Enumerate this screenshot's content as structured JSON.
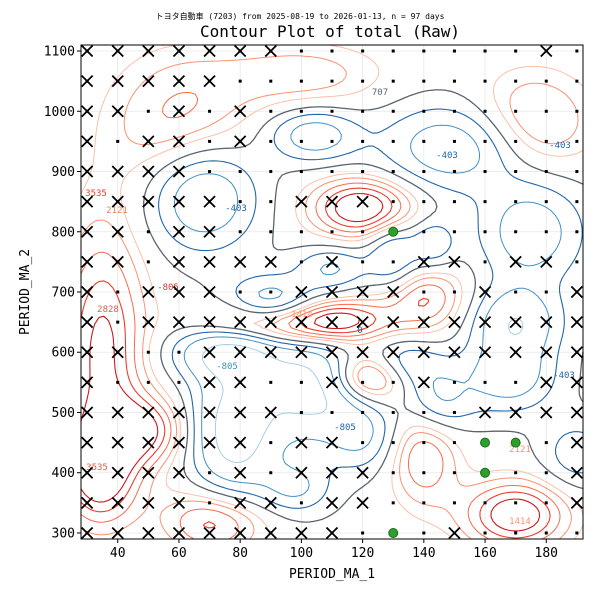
{
  "chart_data": {
    "type": "contour",
    "suptitle": "トヨタ自動車 (7203) from 2025-08-19 to 2026-01-13, n = 97 days",
    "title": "Contour Plot of total (Raw)",
    "xlabel": "PERIOD_MA_1",
    "ylabel": "PERIOD_MA_2",
    "xlim": [
      28,
      192
    ],
    "ylim": [
      290,
      1110
    ],
    "xticks": [
      40,
      60,
      80,
      100,
      120,
      140,
      160,
      180
    ],
    "yticks": [
      300,
      400,
      500,
      600,
      700,
      800,
      900,
      1000,
      1100
    ],
    "grid": true,
    "contour_levels": [
      -805,
      -403,
      0,
      707,
      1414,
      2121,
      2828,
      3535
    ],
    "contour_label_samples": [
      "-805",
      "-403",
      "0",
      "707",
      "1414",
      "2121",
      "2828",
      "3535"
    ],
    "colors": {
      "negative": "#2166ac",
      "zero": "#5a6470",
      "positive": "#d6604d",
      "marker_x": "#000000",
      "marker_dot": "#000000",
      "best": "#2ca02c"
    },
    "best_points": [
      {
        "x": 130,
        "y": 800
      },
      {
        "x": 130,
        "y": 300
      },
      {
        "x": 160,
        "y": 450
      },
      {
        "x": 160,
        "y": 400
      },
      {
        "x": 170,
        "y": 450
      }
    ],
    "x_markers": [
      {
        "x": 30,
        "y": 1100
      },
      {
        "x": 40,
        "y": 1100
      },
      {
        "x": 50,
        "y": 1100
      },
      {
        "x": 60,
        "y": 1100
      },
      {
        "x": 70,
        "y": 1100
      },
      {
        "x": 80,
        "y": 1100
      },
      {
        "x": 90,
        "y": 1100
      },
      {
        "x": 180,
        "y": 1100
      },
      {
        "x": 30,
        "y": 1050
      },
      {
        "x": 40,
        "y": 1050
      },
      {
        "x": 50,
        "y": 1050
      },
      {
        "x": 60,
        "y": 1050
      },
      {
        "x": 70,
        "y": 1050
      },
      {
        "x": 30,
        "y": 1000
      },
      {
        "x": 40,
        "y": 1000
      },
      {
        "x": 60,
        "y": 1000
      },
      {
        "x": 80,
        "y": 1000
      },
      {
        "x": 30,
        "y": 950
      },
      {
        "x": 50,
        "y": 950
      },
      {
        "x": 60,
        "y": 950
      },
      {
        "x": 80,
        "y": 950
      },
      {
        "x": 30,
        "y": 900
      },
      {
        "x": 40,
        "y": 900
      },
      {
        "x": 50,
        "y": 900
      },
      {
        "x": 60,
        "y": 900
      },
      {
        "x": 30,
        "y": 850
      },
      {
        "x": 40,
        "y": 850
      },
      {
        "x": 50,
        "y": 850
      },
      {
        "x": 60,
        "y": 850
      },
      {
        "x": 70,
        "y": 850
      },
      {
        "x": 100,
        "y": 850
      },
      {
        "x": 110,
        "y": 850
      },
      {
        "x": 120,
        "y": 850
      },
      {
        "x": 30,
        "y": 800
      },
      {
        "x": 40,
        "y": 800
      },
      {
        "x": 60,
        "y": 800
      },
      {
        "x": 70,
        "y": 800
      },
      {
        "x": 30,
        "y": 750
      },
      {
        "x": 40,
        "y": 750
      },
      {
        "x": 60,
        "y": 750
      },
      {
        "x": 70,
        "y": 750
      },
      {
        "x": 80,
        "y": 750
      },
      {
        "x": 90,
        "y": 750
      },
      {
        "x": 110,
        "y": 750
      },
      {
        "x": 140,
        "y": 750
      },
      {
        "x": 150,
        "y": 750
      },
      {
        "x": 170,
        "y": 750
      },
      {
        "x": 180,
        "y": 750
      },
      {
        "x": 30,
        "y": 700
      },
      {
        "x": 50,
        "y": 700
      },
      {
        "x": 60,
        "y": 700
      },
      {
        "x": 70,
        "y": 700
      },
      {
        "x": 100,
        "y": 700
      },
      {
        "x": 110,
        "y": 700
      },
      {
        "x": 120,
        "y": 700
      },
      {
        "x": 130,
        "y": 700
      },
      {
        "x": 160,
        "y": 700
      },
      {
        "x": 190,
        "y": 700
      },
      {
        "x": 30,
        "y": 650
      },
      {
        "x": 50,
        "y": 650
      },
      {
        "x": 60,
        "y": 650
      },
      {
        "x": 70,
        "y": 650
      },
      {
        "x": 80,
        "y": 650
      },
      {
        "x": 90,
        "y": 650
      },
      {
        "x": 100,
        "y": 650
      },
      {
        "x": 110,
        "y": 650
      },
      {
        "x": 120,
        "y": 650
      },
      {
        "x": 130,
        "y": 650
      },
      {
        "x": 140,
        "y": 650
      },
      {
        "x": 150,
        "y": 650
      },
      {
        "x": 160,
        "y": 650
      },
      {
        "x": 170,
        "y": 650
      },
      {
        "x": 180,
        "y": 650
      },
      {
        "x": 190,
        "y": 650
      },
      {
        "x": 30,
        "y": 600
      },
      {
        "x": 40,
        "y": 600
      },
      {
        "x": 70,
        "y": 600
      },
      {
        "x": 80,
        "y": 600
      },
      {
        "x": 90,
        "y": 600
      },
      {
        "x": 100,
        "y": 600
      },
      {
        "x": 110,
        "y": 600
      },
      {
        "x": 120,
        "y": 600
      },
      {
        "x": 130,
        "y": 600
      },
      {
        "x": 140,
        "y": 600
      },
      {
        "x": 150,
        "y": 600
      },
      {
        "x": 160,
        "y": 600
      },
      {
        "x": 170,
        "y": 600
      },
      {
        "x": 180,
        "y": 600
      },
      {
        "x": 190,
        "y": 600
      },
      {
        "x": 30,
        "y": 550
      },
      {
        "x": 70,
        "y": 550
      },
      {
        "x": 80,
        "y": 550
      },
      {
        "x": 110,
        "y": 550
      },
      {
        "x": 140,
        "y": 550
      },
      {
        "x": 180,
        "y": 550
      },
      {
        "x": 190,
        "y": 550
      },
      {
        "x": 30,
        "y": 500
      },
      {
        "x": 40,
        "y": 500
      },
      {
        "x": 50,
        "y": 500
      },
      {
        "x": 60,
        "y": 500
      },
      {
        "x": 70,
        "y": 500
      },
      {
        "x": 80,
        "y": 500
      },
      {
        "x": 90,
        "y": 500
      },
      {
        "x": 160,
        "y": 500
      },
      {
        "x": 170,
        "y": 500
      },
      {
        "x": 180,
        "y": 500
      },
      {
        "x": 190,
        "y": 500
      },
      {
        "x": 30,
        "y": 450
      },
      {
        "x": 40,
        "y": 450
      },
      {
        "x": 50,
        "y": 450
      },
      {
        "x": 60,
        "y": 450
      },
      {
        "x": 70,
        "y": 450
      },
      {
        "x": 80,
        "y": 450
      },
      {
        "x": 100,
        "y": 450
      },
      {
        "x": 110,
        "y": 450
      },
      {
        "x": 190,
        "y": 450
      },
      {
        "x": 30,
        "y": 400
      },
      {
        "x": 40,
        "y": 400
      },
      {
        "x": 50,
        "y": 400
      },
      {
        "x": 60,
        "y": 400
      },
      {
        "x": 80,
        "y": 400
      },
      {
        "x": 100,
        "y": 400
      },
      {
        "x": 110,
        "y": 400
      },
      {
        "x": 120,
        "y": 400
      },
      {
        "x": 190,
        "y": 400
      },
      {
        "x": 30,
        "y": 350
      },
      {
        "x": 40,
        "y": 350
      },
      {
        "x": 50,
        "y": 350
      },
      {
        "x": 60,
        "y": 350
      },
      {
        "x": 80,
        "y": 350
      },
      {
        "x": 90,
        "y": 350
      },
      {
        "x": 110,
        "y": 350
      },
      {
        "x": 120,
        "y": 350
      },
      {
        "x": 190,
        "y": 350
      },
      {
        "x": 30,
        "y": 300
      },
      {
        "x": 40,
        "y": 300
      },
      {
        "x": 50,
        "y": 300
      },
      {
        "x": 60,
        "y": 300
      },
      {
        "x": 70,
        "y": 300
      },
      {
        "x": 80,
        "y": 300
      },
      {
        "x": 90,
        "y": 300
      },
      {
        "x": 100,
        "y": 300
      },
      {
        "x": 110,
        "y": 300
      },
      {
        "x": 150,
        "y": 300
      }
    ]
  }
}
